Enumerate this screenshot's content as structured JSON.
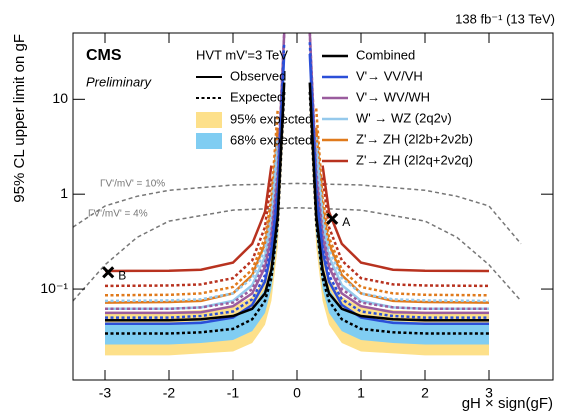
{
  "chart_data": {
    "type": "line",
    "lumi_label": "138 fb⁻¹ (13 TeV)",
    "experiment": "CMS",
    "status": "Preliminary",
    "model_label": "HVT mV'=3 TeV",
    "xlabel": "gH × sign(gF)",
    "ylabel": "95% CL upper limit on gF",
    "xlim": [
      -3.5,
      4
    ],
    "ylim": [
      0.011,
      50
    ],
    "log_y": true,
    "xticks": [
      -3,
      -2,
      -1,
      0,
      1,
      2,
      3
    ],
    "yticks": [
      {
        "value": 0.1,
        "label": "10⁻¹"
      },
      1,
      10
    ],
    "observed_label": "Observed",
    "expected_label": "Expected",
    "x": [
      -3,
      -2,
      -1.5,
      -1,
      -0.7,
      -0.5,
      -0.4,
      -0.3,
      -0.2,
      -0.12,
      0.12,
      0.2,
      0.3,
      0.4,
      0.5,
      0.7,
      1,
      1.5,
      2,
      3
    ],
    "bands": [
      {
        "name": "95% expected",
        "color": "#fde08a",
        "lo": [
          0.02,
          0.02,
          0.021,
          0.022,
          0.027,
          0.042,
          0.075,
          0.28,
          7,
          null,
          null,
          7,
          0.28,
          0.075,
          0.042,
          0.027,
          0.022,
          0.021,
          0.02,
          0.02
        ],
        "hi": [
          0.058,
          0.058,
          0.06,
          0.065,
          0.083,
          0.13,
          0.22,
          0.85,
          21,
          null,
          null,
          21,
          0.85,
          0.22,
          0.13,
          0.083,
          0.065,
          0.06,
          0.058,
          0.058
        ]
      },
      {
        "name": "68% expected",
        "color": "#80cdf2",
        "lo": [
          0.026,
          0.026,
          0.027,
          0.029,
          0.036,
          0.056,
          0.1,
          0.38,
          9,
          null,
          null,
          9,
          0.38,
          0.1,
          0.056,
          0.036,
          0.029,
          0.027,
          0.026,
          0.026
        ],
        "hi": [
          0.044,
          0.044,
          0.046,
          0.05,
          0.063,
          0.1,
          0.17,
          0.66,
          16,
          null,
          null,
          16,
          0.66,
          0.17,
          0.1,
          0.063,
          0.05,
          0.046,
          0.044,
          0.044
        ]
      }
    ],
    "series": [
      {
        "name": "Combined",
        "color": "#000000",
        "observed": [
          0.047,
          0.047,
          0.048,
          0.052,
          0.062,
          0.09,
          0.16,
          0.6,
          15,
          null,
          null,
          15,
          0.6,
          0.16,
          0.09,
          0.062,
          0.052,
          0.048,
          0.047,
          0.047
        ],
        "expected": [
          0.034,
          0.034,
          0.035,
          0.038,
          0.048,
          0.075,
          0.13,
          0.5,
          12,
          null,
          null,
          12,
          0.5,
          0.13,
          0.075,
          0.048,
          0.038,
          0.035,
          0.034,
          0.034
        ]
      },
      {
        "name": "V'→ VV/VH",
        "color": "#2b4fd8",
        "observed": [
          0.043,
          0.043,
          0.044,
          0.05,
          0.068,
          0.12,
          0.25,
          1,
          30,
          null,
          null,
          30,
          1,
          0.25,
          0.12,
          0.068,
          0.05,
          0.044,
          0.043,
          0.043
        ],
        "expected": [
          0.05,
          0.05,
          0.052,
          0.058,
          0.078,
          0.14,
          0.28,
          1.2,
          40,
          null,
          null,
          40,
          1.2,
          0.28,
          0.14,
          0.078,
          0.058,
          0.052,
          0.05,
          0.05
        ]
      },
      {
        "name": "V'→ WV/WH",
        "color": "#9a5c9e",
        "observed": [
          0.056,
          0.056,
          0.057,
          0.066,
          0.09,
          0.17,
          0.35,
          1.5,
          50,
          null,
          null,
          50,
          1.5,
          0.35,
          0.17,
          0.09,
          0.066,
          0.057,
          0.056,
          0.056
        ],
        "expected": [
          0.062,
          0.062,
          0.064,
          0.072,
          0.1,
          0.19,
          0.4,
          1.8,
          50,
          null,
          null,
          50,
          1.8,
          0.4,
          0.19,
          0.1,
          0.072,
          0.064,
          0.062,
          0.062
        ]
      },
      {
        "name": "W' → WZ (2q2ν)",
        "color": "#95c9ec",
        "observed": [
          0.062,
          0.062,
          0.064,
          0.075,
          0.11,
          0.22,
          0.5,
          3,
          null,
          null,
          null,
          null,
          3,
          0.5,
          0.22,
          0.11,
          0.075,
          0.064,
          0.062,
          0.062
        ],
        "expected": [
          0.075,
          0.076,
          0.078,
          0.09,
          0.13,
          0.26,
          0.6,
          4,
          null,
          null,
          null,
          null,
          4,
          0.6,
          0.26,
          0.13,
          0.09,
          0.078,
          0.076,
          0.075
        ]
      },
      {
        "name": "Z'→ ZH (2l2b+2ν2b)",
        "color": "#e07a1c",
        "observed": [
          0.072,
          0.073,
          0.075,
          0.09,
          0.14,
          0.3,
          0.7,
          5,
          null,
          null,
          null,
          null,
          5,
          0.7,
          0.3,
          0.14,
          0.09,
          0.075,
          0.073,
          0.072
        ],
        "expected": [
          0.086,
          0.087,
          0.09,
          0.105,
          0.16,
          0.35,
          0.9,
          8,
          null,
          null,
          null,
          null,
          8,
          0.9,
          0.35,
          0.16,
          0.105,
          0.09,
          0.087,
          0.086
        ]
      },
      {
        "name": "Z'→ ZH (2l2q+2ν2q)",
        "color": "#b8321f",
        "observed": [
          0.155,
          0.156,
          0.16,
          0.19,
          0.3,
          0.65,
          2,
          null,
          null,
          null,
          null,
          null,
          null,
          2,
          0.65,
          0.3,
          0.19,
          0.16,
          0.156,
          0.155
        ],
        "expected": [
          0.108,
          0.109,
          0.112,
          0.13,
          0.2,
          0.45,
          1.5,
          null,
          null,
          null,
          null,
          null,
          null,
          1.5,
          0.45,
          0.2,
          0.13,
          0.112,
          0.109,
          0.108
        ]
      }
    ],
    "width_curves": [
      {
        "label": "ΓV'/mV' = 10%",
        "x": [
          -3.5,
          -3,
          -2.5,
          -2,
          -1,
          0,
          1,
          2,
          2.5,
          3,
          3.5
        ],
        "values": [
          0.45,
          0.75,
          0.95,
          1.1,
          1.25,
          1.3,
          1.25,
          1.1,
          0.95,
          0.75,
          0.3
        ]
      },
      {
        "label": "ΓV'/mV' = 4%",
        "x": [
          -3.5,
          -3,
          -2.5,
          -2,
          -1,
          0,
          1,
          2,
          2.5,
          3,
          3.5
        ],
        "values": [
          0.075,
          0.18,
          0.35,
          0.52,
          0.68,
          0.72,
          0.68,
          0.52,
          0.35,
          0.18,
          0.075
        ]
      }
    ],
    "points": [
      {
        "label": "A",
        "x": 0.55,
        "y": 0.55
      },
      {
        "label": "B",
        "x": -2.95,
        "y": 0.15
      }
    ]
  }
}
